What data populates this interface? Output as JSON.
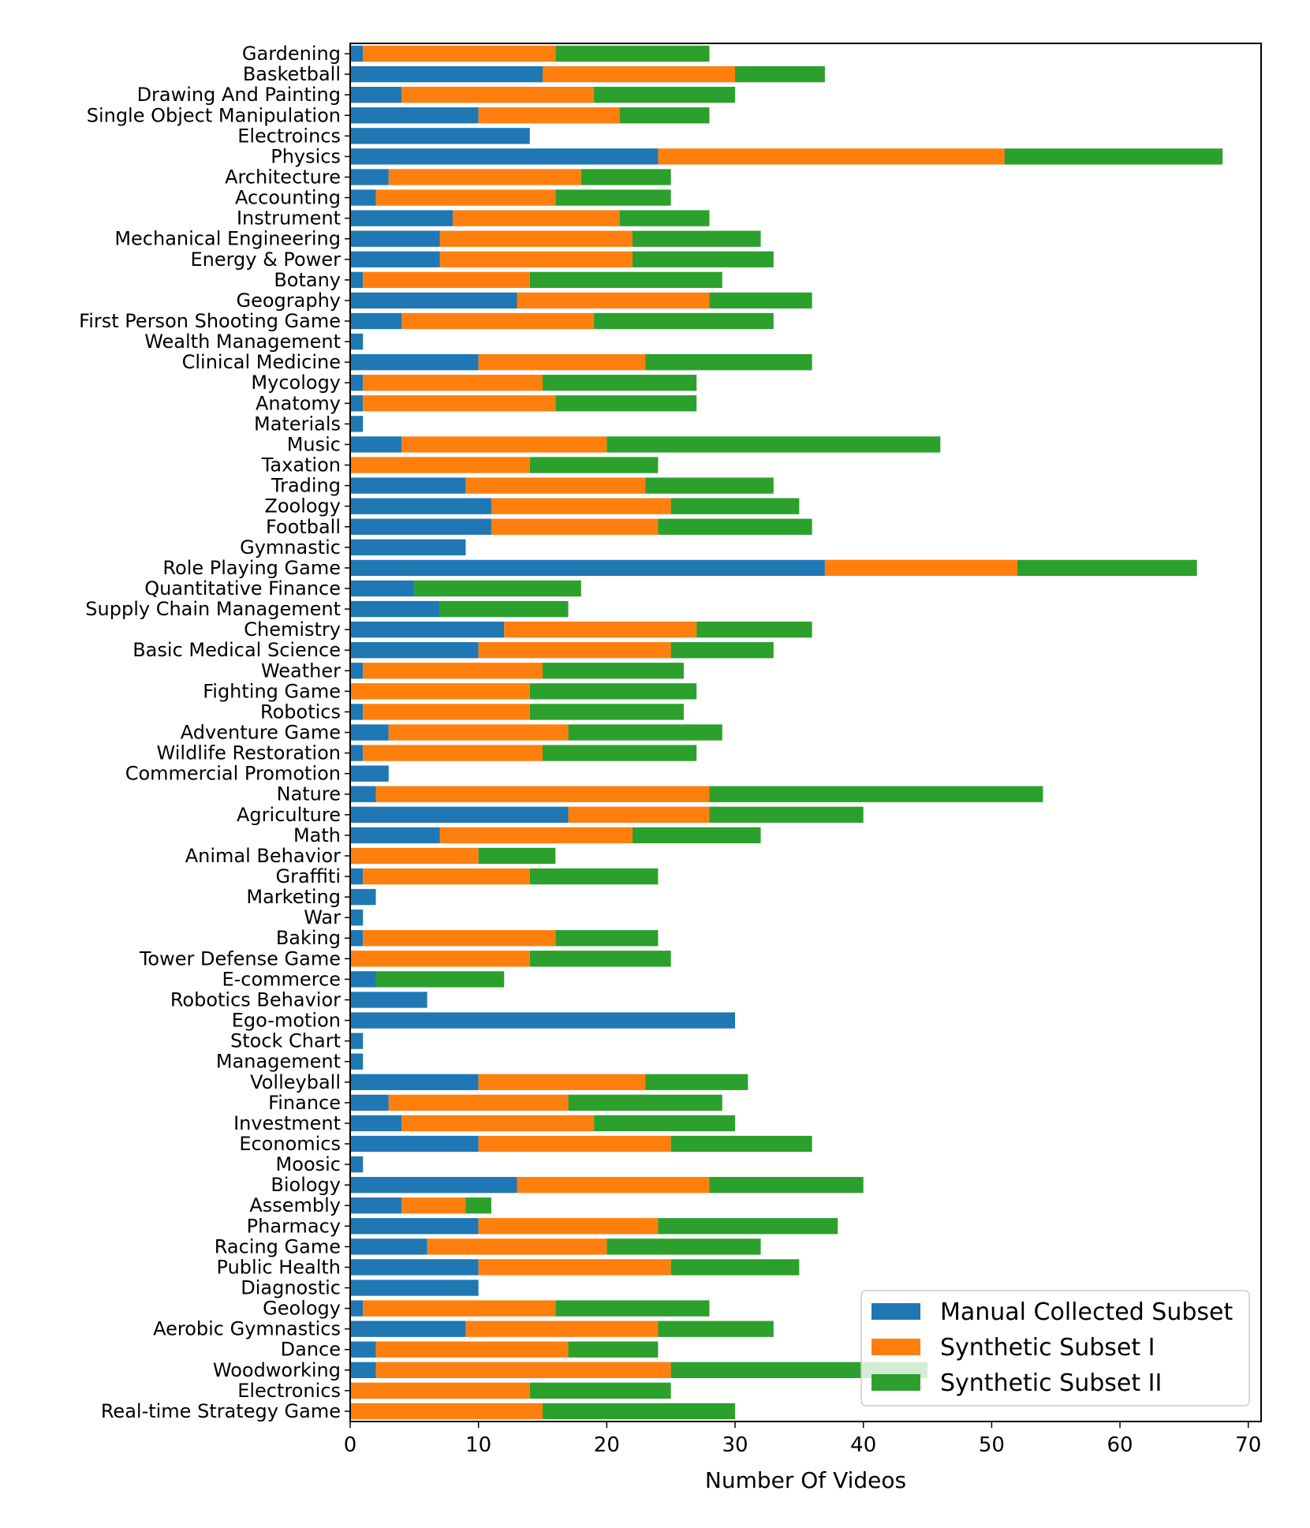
{
  "chart_data": {
    "type": "bar",
    "orientation": "horizontal",
    "stacked": true,
    "title": "",
    "xlabel": "Number Of Videos",
    "ylabel": "",
    "xlim": [
      0,
      71
    ],
    "xticks": [
      0,
      10,
      20,
      30,
      40,
      50,
      60,
      70
    ],
    "grid": false,
    "legend_position": "lower-right",
    "categories": [
      "Gardening",
      "Basketball",
      "Drawing And Painting",
      "Single Object Manipulation",
      "Electroincs",
      "Physics",
      "Architecture",
      "Accounting",
      "Instrument",
      "Mechanical Engineering",
      "Energy & Power",
      "Botany",
      "Geography",
      "First Person Shooting Game",
      "Wealth Management",
      "Clinical Medicine",
      "Mycology",
      "Anatomy",
      "Materials",
      "Music",
      "Taxation",
      "Trading",
      "Zoology",
      "Football",
      "Gymnastic",
      "Role Playing Game",
      "Quantitative Finance",
      "Supply Chain Management",
      "Chemistry",
      "Basic Medical Science",
      "Weather",
      "Fighting Game",
      "Robotics",
      "Adventure Game",
      "Wildlife Restoration",
      "Commercial Promotion",
      "Nature",
      "Agriculture",
      "Math",
      "Animal Behavior",
      "Graffiti",
      "Marketing",
      "War",
      "Baking",
      "Tower Defense Game",
      "E-commerce",
      "Robotics Behavior",
      "Ego-motion",
      "Stock Chart",
      "Management",
      "Volleyball",
      "Finance",
      "Investment",
      "Economics",
      "Moosic",
      "Biology",
      "Assembly",
      "Pharmacy",
      "Racing Game",
      "Public Health",
      "Diagnostic",
      "Geology",
      "Aerobic Gymnastics",
      "Dance",
      "Woodworking",
      "Electronics",
      "Real-time Strategy Game"
    ],
    "series": [
      {
        "name": "Manual Collected Subset",
        "color": "#1f77b4",
        "values": [
          1,
          15,
          4,
          10,
          14,
          24,
          3,
          2,
          8,
          7,
          7,
          1,
          13,
          4,
          1,
          10,
          1,
          1,
          1,
          4,
          0,
          9,
          11,
          11,
          9,
          37,
          5,
          7,
          12,
          10,
          1,
          0,
          1,
          3,
          1,
          3,
          2,
          17,
          7,
          0,
          1,
          2,
          1,
          1,
          0,
          2,
          6,
          30,
          1,
          1,
          10,
          3,
          4,
          10,
          1,
          13,
          4,
          10,
          6,
          10,
          10,
          1,
          9,
          2,
          2,
          0,
          0
        ]
      },
      {
        "name": "Synthetic Subset I",
        "color": "#ff7f0e",
        "values": [
          15,
          15,
          15,
          11,
          0,
          27,
          15,
          14,
          13,
          15,
          15,
          13,
          15,
          15,
          0,
          13,
          14,
          15,
          0,
          16,
          14,
          14,
          14,
          13,
          0,
          15,
          0,
          0,
          15,
          15,
          14,
          14,
          13,
          14,
          14,
          0,
          26,
          11,
          15,
          10,
          13,
          0,
          0,
          15,
          14,
          0,
          0,
          0,
          0,
          0,
          13,
          14,
          15,
          15,
          0,
          15,
          5,
          14,
          14,
          15,
          0,
          15,
          15,
          15,
          23,
          14,
          15
        ]
      },
      {
        "name": "Synthetic Subset II",
        "color": "#2ca02c",
        "values": [
          12,
          7,
          11,
          7,
          0,
          17,
          7,
          9,
          7,
          10,
          11,
          15,
          8,
          14,
          0,
          13,
          12,
          11,
          0,
          26,
          10,
          10,
          10,
          12,
          0,
          14,
          13,
          10,
          9,
          8,
          11,
          13,
          12,
          12,
          12,
          0,
          26,
          12,
          10,
          6,
          10,
          0,
          0,
          8,
          11,
          10,
          0,
          0,
          0,
          0,
          8,
          12,
          11,
          11,
          0,
          12,
          2,
          14,
          12,
          10,
          0,
          12,
          9,
          7,
          20,
          11,
          15
        ]
      }
    ]
  }
}
